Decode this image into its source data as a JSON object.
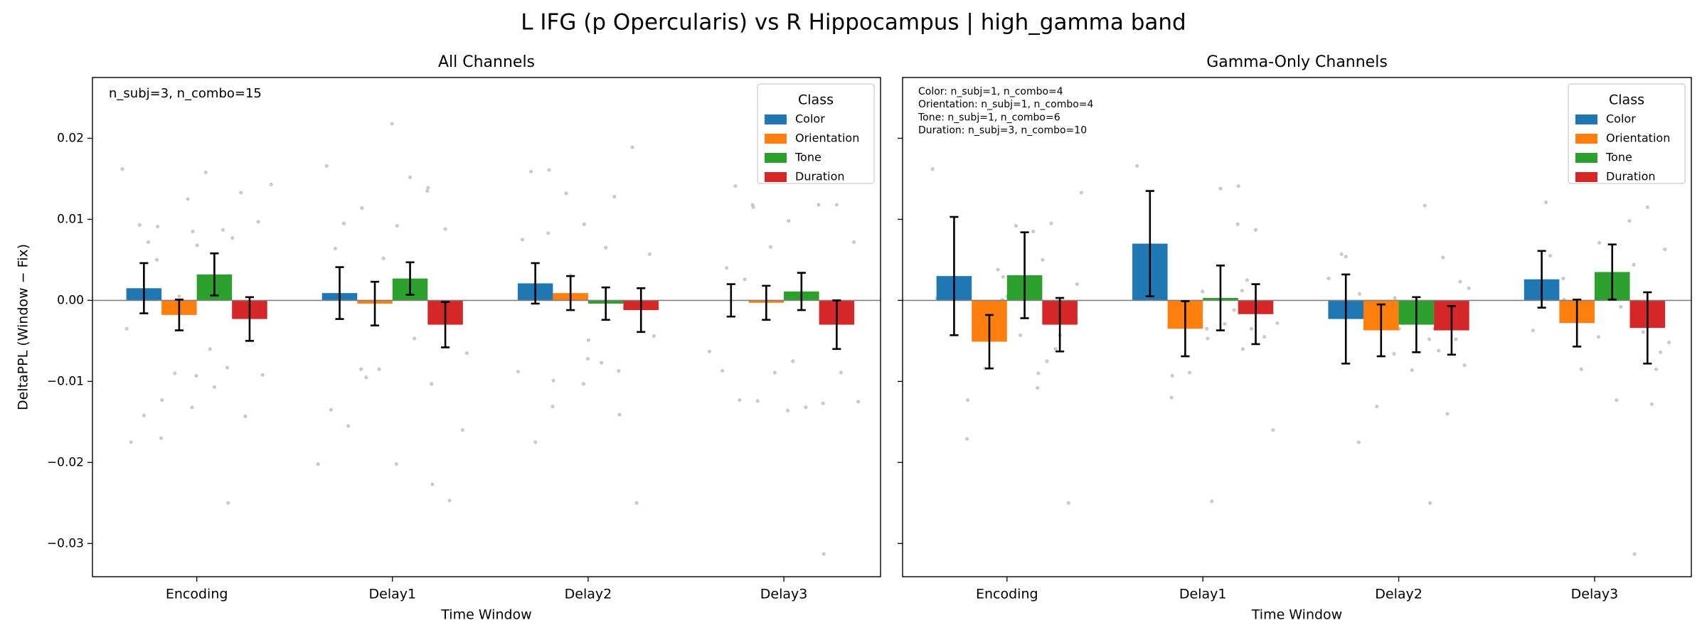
{
  "title": "L IFG (p Opercularis) vs R Hippocampus  |  high_gamma band",
  "chart_data": [
    {
      "type": "bar",
      "title": "All Channels",
      "xlabel": "Time Window",
      "ylabel": "DeltaPPL (Window − Fix)",
      "annotation": [
        "n_subj=3, n_combo=15"
      ],
      "categories": [
        "Encoding",
        "Delay1",
        "Delay2",
        "Delay3"
      ],
      "ylim": [
        -0.0341,
        0.0275
      ],
      "yticks": [
        {
          "value": -0.03,
          "label": "−0.03"
        },
        {
          "value": -0.02,
          "label": "−0.02"
        },
        {
          "value": -0.01,
          "label": "−0.01"
        },
        {
          "value": 0,
          "label": "0.00"
        },
        0.01,
        0.02
      ],
      "show_ytick_labels": true,
      "legend_title": "Class",
      "legend": "upper right",
      "series": [
        {
          "name": "Color",
          "color": "#1f77b4",
          "values": [
            0.0015,
            0.0009,
            0.0021,
            0.0
          ],
          "errors": [
            0.0031,
            0.0032,
            0.0025,
            0.002
          ],
          "points": [
            [
              0.0162,
              0.0093,
              0.005,
              -0.0035,
              -0.0142,
              -0.017,
              -0.0175,
              0.0072
            ],
            [
              0.0166,
              0.0095,
              -0.0085,
              -0.0135,
              -0.0155,
              -0.0202,
              0.0064
            ],
            [
              0.0159,
              0.0083,
              -0.0088,
              -0.0175,
              -0.0131,
              0.0075
            ],
            [
              0.0141,
              0.0118,
              -0.0087,
              -0.0123,
              -0.0063,
              0.004
            ]
          ]
        },
        {
          "name": "Orientation",
          "color": "#ff7f0e",
          "values": [
            -0.0018,
            -0.0004,
            0.0009,
            -0.0003
          ],
          "errors": [
            0.0019,
            0.0027,
            0.0021,
            0.0021
          ],
          "points": [
            [
              0.0125,
              0.0091,
              -0.009,
              -0.0132,
              -0.0123,
              0.0005,
              -0.0093
            ],
            [
              0.0218,
              0.0114,
              -0.0085,
              -0.0202,
              -0.0095,
              0.0052
            ],
            [
              0.0161,
              0.0132,
              -0.0103,
              -0.0099,
              0.0031,
              -0.0072
            ],
            [
              0.0115,
              0.0066,
              -0.0136,
              -0.0124,
              -0.0089,
              0.0026
            ]
          ]
        },
        {
          "name": "Tone",
          "color": "#2ca02c",
          "values": [
            0.0032,
            0.0027,
            -0.0004,
            0.0011
          ],
          "errors": [
            0.0026,
            0.002,
            0.002,
            0.0023
          ],
          "points": [
            [
              0.0158,
              0.0087,
              0.0085,
              -0.006,
              -0.0083,
              0.0068,
              -0.0107
            ],
            [
              0.0152,
              0.0135,
              0.0092,
              -0.0047,
              -0.0103,
              0.0009
            ],
            [
              0.0128,
              0.0094,
              -0.0077,
              -0.0087,
              -0.0049,
              0.0065
            ],
            [
              0.0118,
              0.0098,
              -0.0132,
              -0.0127,
              -0.0075
            ]
          ]
        },
        {
          "name": "Duration",
          "color": "#d62728",
          "values": [
            -0.0023,
            -0.003,
            -0.0012,
            -0.003
          ],
          "errors": [
            0.0027,
            0.0028,
            0.0027,
            0.003
          ],
          "points": [
            [
              0.0143,
              0.0133,
              0.0097,
              -0.025,
              -0.0143,
              -0.0092,
              0.0077
            ],
            [
              0.0139,
              0.0088,
              -0.016,
              -0.0227,
              -0.0247,
              -0.0065
            ],
            [
              0.0189,
              0.0057,
              -0.0141,
              -0.025,
              -0.0044
            ],
            [
              0.0118,
              0.0072,
              -0.0313,
              -0.0089,
              -0.0125
            ]
          ]
        }
      ]
    },
    {
      "type": "bar",
      "title": "Gamma-Only Channels",
      "xlabel": "Time Window",
      "annotation": [
        "Color: n_subj=1, n_combo=4",
        "Orientation: n_subj=1, n_combo=4",
        "Tone: n_subj=1, n_combo=6",
        "Duration: n_subj=3, n_combo=10"
      ],
      "categories": [
        "Encoding",
        "Delay1",
        "Delay2",
        "Delay3"
      ],
      "ylim": [
        -0.0341,
        0.0275
      ],
      "yticks": [
        -0.03,
        -0.02,
        -0.01,
        0,
        0.01,
        0.02
      ],
      "show_ytick_labels": false,
      "legend_title": "Class",
      "legend": "upper right",
      "series": [
        {
          "name": "Color",
          "color": "#1f77b4",
          "values": [
            0.003,
            0.007,
            -0.0023,
            0.0026
          ],
          "errors": [
            0.0073,
            0.0065,
            0.0055,
            0.0035
          ],
          "points": [
            [
              0.0162,
              0.0027,
              -0.0171,
              0.0003
            ],
            [
              0.0166,
              0.0029,
              -0.012,
              0.0064
            ],
            [
              0.0057,
              -0.0175,
              0.0027,
              0.0054
            ],
            [
              0.0121,
              0.0027,
              -0.0037,
              0.0055
            ]
          ]
        },
        {
          "name": "Orientation",
          "color": "#ff7f0e",
          "values": [
            -0.0051,
            -0.0035,
            -0.0037,
            -0.0028
          ],
          "errors": [
            0.0033,
            0.0034,
            0.0032,
            0.0029
          ],
          "points": [
            [
              0.0038,
              -0.0123,
              -0.0084,
              0.0001
            ],
            [
              0.0011,
              -0.0093,
              -0.0089,
              -0.0035
            ],
            [
              0.0008,
              -0.0131,
              -0.0066,
              -0.002
            ],
            [
              0.0001,
              -0.0085,
              -0.0045,
              -0.0022
            ]
          ]
        },
        {
          "name": "Tone",
          "color": "#2ca02c",
          "values": [
            0.0031,
            0.0003,
            -0.003,
            0.0035
          ],
          "errors": [
            0.0053,
            0.004,
            0.0034,
            0.0034
          ],
          "points": [
            [
              0.0092,
              0.0085,
              0.0029,
              -0.0043,
              -0.0108,
              0.0005
            ],
            [
              0.0138,
              0.0094,
              -0.0047,
              -0.0029,
              0.0012,
              -0.0248
            ],
            [
              0.0117,
              0.0003,
              -0.0086,
              -0.0048,
              -0.0035,
              -0.0022
            ],
            [
              0.0098,
              0.0071,
              -0.0123,
              0.0044,
              0.0012,
              -0.0008
            ]
          ]
        },
        {
          "name": "Duration",
          "color": "#d62728",
          "values": [
            -0.003,
            -0.0017,
            -0.0037,
            -0.0034
          ],
          "errors": [
            0.0033,
            0.0037,
            0.003,
            0.0044
          ],
          "points": [
            [
              0.0133,
              0.0095,
              -0.025,
              -0.009,
              -0.006,
              -0.002,
              0.005,
              -0.0043,
              0.002,
              -0.0075
            ],
            [
              0.0141,
              0.0087,
              -0.016,
              -0.006,
              -0.0005,
              -0.0028,
              0.0025,
              -0.0045,
              -0.0012,
              -0.0035
            ],
            [
              0.0053,
              0.0023,
              -0.025,
              -0.014,
              -0.008,
              -0.0035,
              -0.001,
              0.0015,
              -0.0062,
              -0.0048
            ],
            [
              0.0115,
              0.0063,
              -0.0313,
              -0.0128,
              -0.0052,
              -0.0025,
              -0.0085,
              0.0012,
              -0.0039,
              -0.0064
            ]
          ]
        }
      ]
    }
  ]
}
